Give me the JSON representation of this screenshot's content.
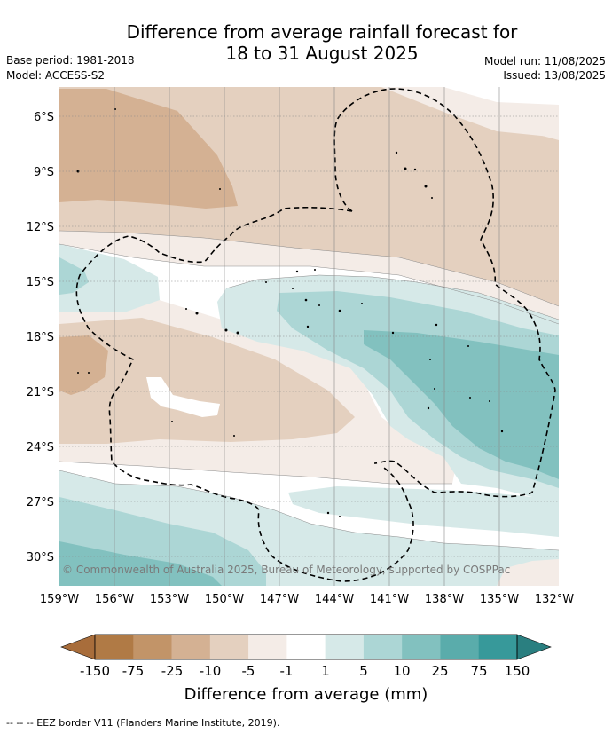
{
  "header": {
    "title_line1": "Difference from average rainfall forecast for",
    "title_line2": "18 to 31 August 2025",
    "base_period": "Base period: 1981-2018",
    "model": "Model: ACCESS-S2",
    "model_run": "Model run: 11/08/2025",
    "issued": "Issued: 13/08/2025"
  },
  "map": {
    "lat_labels": [
      "6°S",
      "9°S",
      "12°S",
      "15°S",
      "18°S",
      "21°S",
      "24°S",
      "27°S",
      "30°S"
    ],
    "lon_labels": [
      "159°W",
      "156°W",
      "153°W",
      "150°W",
      "147°W",
      "144°W",
      "141°W",
      "138°W",
      "135°W",
      "132°W"
    ],
    "copyright": "© Commonwealth of Australia 2025, Bureau of Meteorology, supported by COSPPac"
  },
  "colorbar": {
    "labels": [
      "-150",
      "-75",
      "-25",
      "-10",
      "-5",
      "-1",
      "1",
      "5",
      "10",
      "25",
      "75",
      "150"
    ],
    "colors": [
      "#a86d3b",
      "#b07a45",
      "#c29468",
      "#d4b193",
      "#e4d0bf",
      "#f4ece7",
      "#ffffff",
      "#d6e9e8",
      "#acd6d5",
      "#82c1bf",
      "#5aacab",
      "#37999a",
      "#2a7f80"
    ],
    "title": "Difference from average (mm)"
  },
  "footer": {
    "legend_text": "--  --  -- EEZ border V11 (Flanders Marine Institute, 2019)."
  }
}
